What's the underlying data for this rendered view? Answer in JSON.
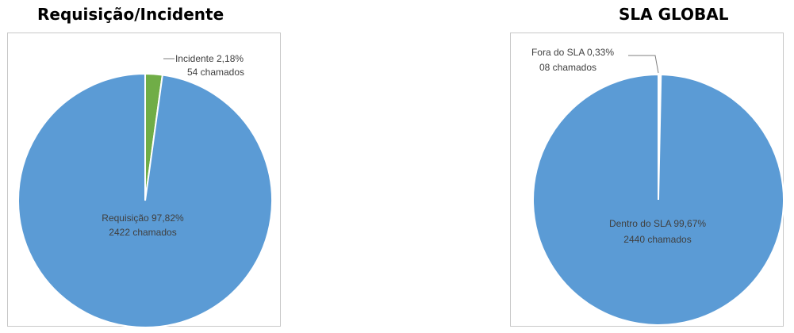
{
  "chart_data": [
    {
      "type": "pie",
      "title": "Requisição/Incidente",
      "slices": [
        {
          "label": "Requisição",
          "percent": 97.82,
          "count": 2422,
          "color": "#5b9bd5",
          "line1": "Requisição 97,82%",
          "line2": "2422 chamados"
        },
        {
          "label": "Incidente",
          "percent": 2.18,
          "count": 54,
          "color": "#70ad47",
          "line1": "Incidente 2,18%",
          "line2": "54 chamados"
        }
      ]
    },
    {
      "type": "pie",
      "title": "SLA GLOBAL",
      "slices": [
        {
          "label": "Dentro do SLA",
          "percent": 99.67,
          "count": 2440,
          "color": "#5b9bd5",
          "line1": "Dentro do SLA 99,67%",
          "line2": "2440 chamados"
        },
        {
          "label": "Fora do SLA",
          "percent": 0.33,
          "count": 8,
          "color": "#ffffff",
          "line1": "Fora do SLA 0,33%",
          "line2": "08 chamados"
        }
      ]
    }
  ]
}
